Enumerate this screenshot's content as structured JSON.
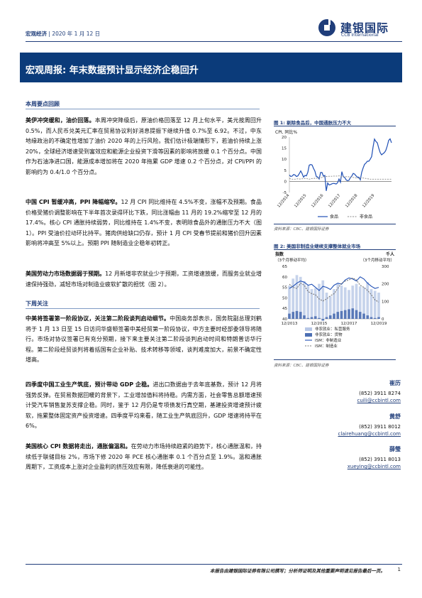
{
  "header": {
    "category": "宏观经济",
    "date": "2020 年 1 月 12 日",
    "logo_cn": "建银国际",
    "logo_en": "CCB International"
  },
  "banner": {
    "label": "宏观周报:",
    "title": "年末数据预计显示经济企稳回升"
  },
  "sections": {
    "week_summary": "本周要点回顾",
    "next_week": "下周关注"
  },
  "paragraphs": {
    "p1_lead": "美伊冲突缓和，油价回落。",
    "p1_body": "本周冲突降级后，原油价格回落至 12 月上旬水平，美元按周回升 0.5%，而人民币兑美元汇率在贸易协议利好消息提振下继续升值 0.7%至 6.92。不过，中东地缘政治的不确定性增加了油价 2020 年的上行风险。我们估计极端情形下，若油价持续上涨 20%，全球经济增速受到富效应和能源企业投资下滑等因素的影响将放缓 0.1 个百分点。中国作为石油净进口国，能源成本增加将在 2020 年拖累 GDP 增速 0.2 个百分点，对 CPI/PPI 的影响约为 0.4/1.0 个百分点。",
    "p2_lead": "中国 CPI 暂缓冲高，PPI 降幅缩窄。",
    "p2_body": "12 月 CPI 同比维持在 4.5%不变，涨幅不及预期。食品价格受猪价调整影响在下半年首次录得环比下跌，同比涨幅由 11 月的 19.2%缩窄至 12 月的 17.4%。核心 CPI 通胀持续弱势，同比维持在 1.4%不变，表明除食品外的通胀压力不大（图 1）。PPI 受油价拉动环比持平。猪肉供给缺口仍存，预计 1 月 CPI 受春节提前和猪价回升因素影响将冲高至 5%以上。预期 PPI 随制造业企稳年初转正。",
    "p3_lead": "美国劳动力市场数据弱于预期。",
    "p3_body": "12 月新增非农就业少于预期，工资增速放缓，而服务业就业增速保持强劲，减轻市场对制造业疲软扩散的担忧（图 2）。",
    "p4_lead": "中美将签署第一阶段协议，关注第二阶段谈判启动细节。",
    "p4_body": "中国商务部表示，国务院副总理刘鹤将于 1 月 13 日至 15 日访问华盛顿签署中美经贸第一阶段协议，中方主要时经部委领导将随行。市场对协议签署已有充分预期，接下来主要关注第二阶段谈判启动时间和特朗普访华行程。第二阶段经贸谈判将着括国有企业补贴、技术转移等领域，谈判难度加大，前景不确定性增高。",
    "p5_lead": "四季度中国工业生产筑底，预计带动 GDP 企稳。",
    "p5_body": "进出口数据由于去年底基数，预计 12 月将强势反弹。在贸易数据回暖的背景下，工业增加值料将持稳。内需方面，社会零售总额增速预计受汽车销售复苏支撑企稳。同时，鉴于 12 月仍是专项债发行真空期，基建投资增速预计疲软，拖累整体固定资产投资增速。四季度平均来看，随工业生产筑底回升，GDP 增速将持平在 6%。",
    "p6_lead": "美国核心 CPI 数据将走出，通胀偏温和。",
    "p6_body": "在劳动力市场持续趋紧的趋势下，核心通胀温和，持续低于联储目标 2%，市场下修 2020 年 PCE 核心通胀率 0.1 个百分点至 1.9%。温和通胀周期下，工资成本上涨对企业盈利的挤压效应有限，降低衰退的可能性。"
  },
  "figure1": {
    "title": "图 1: 剔除食品后，中国通胀压力不大",
    "source": "资料来源：CBC、建银国际证券"
  },
  "figure2": {
    "title": "图 2: 美国非制造业继续支撑整体就业市场",
    "source": "资料来源：CBC、建银国际证券"
  },
  "contacts": [
    {
      "name": "崔历",
      "phone": "(852) 3911 8274",
      "email": "cuili@ccbintl.com"
    },
    {
      "name": "黄舒",
      "phone": "(852) 3911 8012",
      "email": "clairehuang@ccbintl.com"
    },
    {
      "name": "薛瑩",
      "phone": "(852) 3911 8013",
      "email": "xueying@ccbintl.com"
    }
  ],
  "footer": {
    "disclaimer": "本报告由建银国际证券有限公司撰写；分析师证明及其他重要声明请见报告最后一页。",
    "page": "1"
  },
  "colors": {
    "brand": "#1f3d7a",
    "banner": "#0b3b7a",
    "series_blue": "#1f4fb5",
    "series_gray": "#8a8a8a"
  },
  "chart_data": [
    {
      "type": "line",
      "ylabel": "CPI, 同比%",
      "ylim": [
        -5,
        20
      ],
      "yticks": [
        -5,
        0,
        5,
        10,
        15,
        20
      ],
      "xticks": [
        "12/2014",
        "12/2015",
        "12/2016",
        "12/2017",
        "12/2018",
        "12/2019"
      ],
      "x": [
        0,
        1,
        2,
        3,
        4,
        5,
        6,
        7,
        8,
        9,
        10,
        11,
        12,
        13,
        14,
        15,
        16,
        17,
        18,
        19,
        20,
        21,
        22,
        23,
        24,
        25,
        26,
        27,
        28,
        29,
        30,
        31,
        32,
        33,
        34,
        35,
        36,
        37,
        38,
        39,
        40,
        41,
        42,
        43,
        44,
        45,
        46,
        47,
        48,
        49,
        50,
        51,
        52,
        53,
        54,
        55,
        56,
        57,
        58,
        59,
        60,
        61,
        62,
        63,
        64,
        65,
        66,
        67,
        68,
        69,
        70,
        71,
        72
      ],
      "series": [
        {
          "name": "食品",
          "values": [
            2.9,
            2.2,
            2.4,
            3.1,
            2.9,
            2.2,
            2.5,
            3.5,
            4.7,
            3.5,
            1.9,
            2.7,
            2.5,
            4.1,
            7.3,
            7.6,
            7.4,
            5.9,
            4.6,
            2.2,
            2.0,
            1.1,
            4.0,
            4.0,
            2.4,
            2.7,
            -4.3,
            -0.7,
            -1.6,
            -1.4,
            -1.1,
            -0.9,
            -1.0,
            -1.2,
            -0.6,
            1.1,
            -0.4,
            4.4,
            2.1,
            1.8,
            0.7,
            0.3,
            0.5,
            1.7,
            2.4,
            3.6,
            3.3,
            2.5,
            1.9,
            1.9,
            0.7,
            4.1,
            6.1,
            7.7,
            8.3,
            9.1,
            9.1,
            10.0,
            11.2,
            15.5,
            19.1,
            18.0,
            17.4,
            15.0,
            13.0,
            12.0,
            12.5,
            13.0,
            14.0,
            16.0,
            18.5,
            19.2,
            17.4
          ]
        },
        {
          "name": "非食品",
          "values": [
            1.3,
            1.1,
            1.0,
            1.0,
            1.0,
            1.1,
            1.2,
            1.1,
            1.1,
            1.2,
            1.2,
            1.3,
            1.4,
            1.1,
            1.0,
            1.2,
            1.3,
            1.3,
            1.4,
            1.4,
            1.5,
            1.6,
            1.6,
            1.8,
            2.0,
            2.2,
            2.2,
            2.2,
            2.3,
            2.3,
            2.3,
            2.4,
            2.4,
            2.4,
            2.4,
            2.5,
            2.3,
            2.0,
            2.1,
            2.2,
            2.1,
            2.0,
            2.1,
            2.0,
            2.0,
            1.8,
            1.7,
            1.6,
            1.5,
            1.4,
            1.5,
            1.6,
            1.5,
            1.4,
            1.3,
            1.2,
            1.1,
            1.0,
            1.0,
            1.0,
            1.0,
            1.0,
            1.0,
            1.0,
            1.0,
            1.0,
            1.0,
            1.0,
            1.0,
            1.0,
            1.0,
            1.0,
            1.0
          ]
        }
      ]
    },
    {
      "type": "line",
      "ylabel_left": "指数\n（3个月移动平均）",
      "ylabel_right": "千人\n（3个月移动平均）",
      "ylim_left": [
        40,
        65
      ],
      "ylim_right": [
        0,
        300
      ],
      "yticks_left": [
        40,
        45,
        50,
        55,
        60,
        65
      ],
      "yticks_right": [
        0,
        100,
        200,
        300
      ],
      "xticks": [
        "12/2013",
        "12/2015",
        "12/2017",
        "12/2019"
      ],
      "x": [
        0,
        1,
        2,
        3,
        4,
        5,
        6,
        7,
        8,
        9,
        10,
        11,
        12,
        13,
        14,
        15,
        16,
        17,
        18,
        19,
        20,
        21,
        22,
        23,
        24
      ],
      "series": [
        {
          "name": "非农就业：私营服务",
          "axis": "right",
          "type": "bar",
          "values": [
            190,
            230,
            250,
            240,
            215,
            190,
            170,
            175,
            200,
            220,
            150,
            130,
            170,
            200,
            190,
            180,
            165,
            190,
            200,
            185,
            180,
            210,
            170,
            160,
            150
          ]
        },
        {
          "name": "非农就业：货物",
          "axis": "right",
          "type": "bar",
          "values": [
            30,
            40,
            45,
            40,
            20,
            5,
            10,
            15,
            5,
            -10,
            10,
            20,
            30,
            40,
            45,
            50,
            55,
            60,
            50,
            40,
            30,
            20,
            10,
            5,
            10
          ]
        },
        {
          "name": "ISM：非制造业",
          "axis": "left",
          "values": [
            54.5,
            55.5,
            57.0,
            58.0,
            57.5,
            56.0,
            56.5,
            55.0,
            53.5,
            55.5,
            55.0,
            54.0,
            56.0,
            57.0,
            56.5,
            58.5,
            59.5,
            59.0,
            58.0,
            60.0,
            59.0,
            57.0,
            55.5,
            54.5,
            55.0
          ]
        },
        {
          "name": "ISM：制造业",
          "axis": "left",
          "values": [
            56.5,
            55.0,
            54.5,
            57.0,
            56.0,
            53.0,
            52.0,
            51.5,
            49.5,
            48.5,
            49.5,
            51.0,
            52.0,
            54.5,
            57.0,
            58.0,
            58.5,
            59.5,
            58.5,
            56.0,
            55.0,
            53.5,
            51.5,
            49.0,
            48.0
          ]
        }
      ]
    }
  ]
}
